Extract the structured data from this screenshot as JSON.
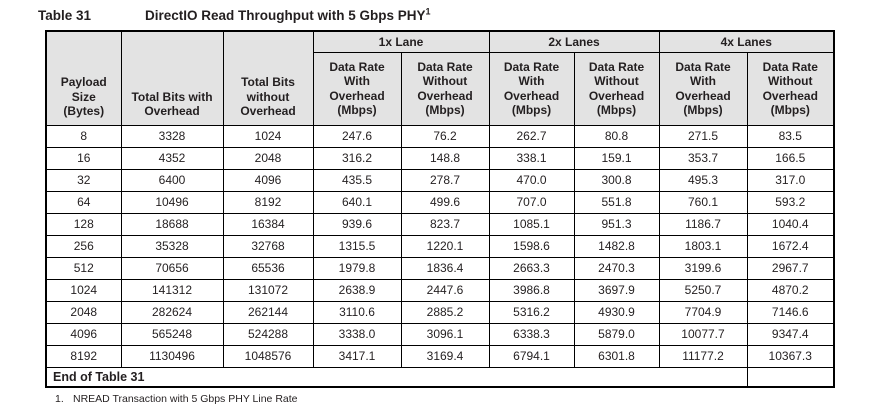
{
  "colors": {
    "page_bg": "#ffffff",
    "header_bg": "#e3e3e3",
    "border": "#000000",
    "text": "#231f20"
  },
  "title": {
    "label": "Table 31",
    "text": "DirectIO Read Throughput with 5 Gbps PHY",
    "superscript": "1"
  },
  "table": {
    "columns": [
      "Payload Size\n(Bytes)",
      "Total Bits with\nOverhead",
      "Total Bits\nwithout\nOverhead"
    ],
    "groups": [
      {
        "label": "1x Lane",
        "sub": [
          "Data Rate\nWith\nOverhead\n(Mbps)",
          "Data Rate\nWithout\nOverhead\n(Mbps)"
        ]
      },
      {
        "label": "2x Lanes",
        "sub": [
          "Data Rate\nWith\nOverhead\n(Mbps)",
          "Data Rate\nWithout\nOverhead\n(Mbps)"
        ]
      },
      {
        "label": "4x Lanes",
        "sub": [
          "Data Rate\nWith\nOverhead\n(Mbps)",
          "Data Rate\nWithout\nOverhead\n(Mbps)"
        ]
      }
    ],
    "rows": [
      [
        "8",
        "3328",
        "1024",
        "247.6",
        "76.2",
        "262.7",
        "80.8",
        "271.5",
        "83.5"
      ],
      [
        "16",
        "4352",
        "2048",
        "316.2",
        "148.8",
        "338.1",
        "159.1",
        "353.7",
        "166.5"
      ],
      [
        "32",
        "6400",
        "4096",
        "435.5",
        "278.7",
        "470.0",
        "300.8",
        "495.3",
        "317.0"
      ],
      [
        "64",
        "10496",
        "8192",
        "640.1",
        "499.6",
        "707.0",
        "551.8",
        "760.1",
        "593.2"
      ],
      [
        "128",
        "18688",
        "16384",
        "939.6",
        "823.7",
        "1085.1",
        "951.3",
        "1186.7",
        "1040.4"
      ],
      [
        "256",
        "35328",
        "32768",
        "1315.5",
        "1220.1",
        "1598.6",
        "1482.8",
        "1803.1",
        "1672.4"
      ],
      [
        "512",
        "70656",
        "65536",
        "1979.8",
        "1836.4",
        "2663.3",
        "2470.3",
        "3199.6",
        "2967.7"
      ],
      [
        "1024",
        "141312",
        "131072",
        "2638.9",
        "2447.6",
        "3986.8",
        "3697.9",
        "5250.7",
        "4870.2"
      ],
      [
        "2048",
        "282624",
        "262144",
        "3110.6",
        "2885.2",
        "5316.2",
        "4930.9",
        "7704.9",
        "7146.6"
      ],
      [
        "4096",
        "565248",
        "524288",
        "3338.0",
        "3096.1",
        "6338.3",
        "5879.0",
        "10077.7",
        "9347.4"
      ],
      [
        "8192",
        "1130496",
        "1048576",
        "3417.1",
        "3169.4",
        "6794.1",
        "6301.8",
        "11177.2",
        "10367.3"
      ]
    ],
    "end_label": "End of Table 31"
  },
  "footnote": {
    "number": "1.",
    "text": "NREAD Transaction with 5 Gbps PHY Line Rate"
  }
}
